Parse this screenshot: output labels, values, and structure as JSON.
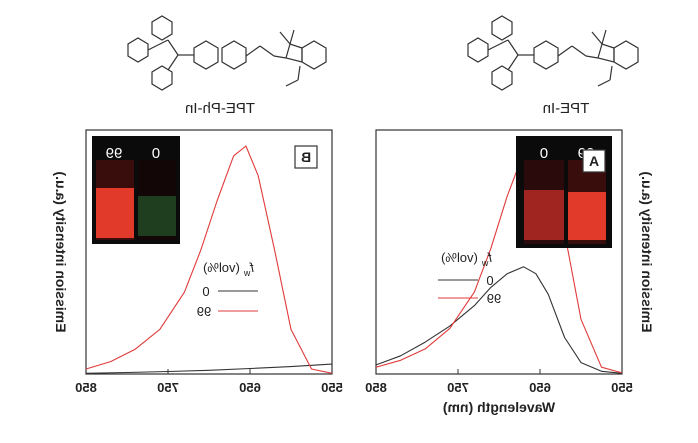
{
  "chart_data": [
    {
      "type": "line",
      "panel_label": "A",
      "compound": "TPE-In",
      "xlabel": "Wavelength (nm)",
      "ylabel": "Emission intensity (a.u.)",
      "xlim": [
        550,
        850
      ],
      "xticks": [
        550,
        650,
        750,
        850
      ],
      "x_reversed_in_image": true,
      "legend_title": "f_w (vol%)",
      "legend_title_main": "f",
      "legend_title_sub": "w",
      "legend_title_unit": "(vol%)",
      "inset_labels": [
        "99",
        "0"
      ],
      "series": [
        {
          "name": "0",
          "color": "#333333",
          "x": [
            550,
            575,
            600,
            620,
            640,
            655,
            670,
            690,
            710,
            730,
            760,
            790,
            820,
            850
          ],
          "y": [
            0.3,
            1.2,
            5,
            16,
            35,
            44,
            47,
            44,
            38,
            30,
            21,
            14,
            8,
            4
          ]
        },
        {
          "name": "99",
          "color": "#e03a3a",
          "x": [
            550,
            575,
            600,
            620,
            640,
            655,
            670,
            690,
            710,
            730,
            760,
            790,
            820,
            850
          ],
          "y": [
            0.5,
            3,
            24,
            62,
            92,
            100,
            97,
            78,
            55,
            36,
            20,
            11,
            6,
            3
          ]
        }
      ]
    },
    {
      "type": "line",
      "panel_label": "B",
      "compound": "TPE-Ph-In",
      "xlabel": "",
      "ylabel": "Emission intensity (a.u.)",
      "xlim": [
        550,
        850
      ],
      "xticks": [
        550,
        650,
        750,
        850
      ],
      "x_reversed_in_image": true,
      "legend_title": "f_w (vol%)",
      "legend_title_main": "f",
      "legend_title_sub": "w",
      "legend_title_unit": "(vol%)",
      "inset_labels": [
        "99",
        "0"
      ],
      "series": [
        {
          "name": "0",
          "color": "#333333",
          "x": [
            550,
            575,
            600,
            650,
            700,
            750,
            800,
            850
          ],
          "y": [
            4,
            3.5,
            3,
            2.2,
            1.5,
            1,
            0.6,
            0.3
          ]
        },
        {
          "name": "99",
          "color": "#e03a3a",
          "x": [
            550,
            575,
            600,
            620,
            640,
            655,
            670,
            690,
            710,
            730,
            760,
            790,
            820,
            850
          ],
          "y": [
            0.3,
            2,
            18,
            50,
            80,
            92,
            88,
            70,
            50,
            33,
            18,
            10,
            5,
            2
          ]
        }
      ]
    }
  ]
}
